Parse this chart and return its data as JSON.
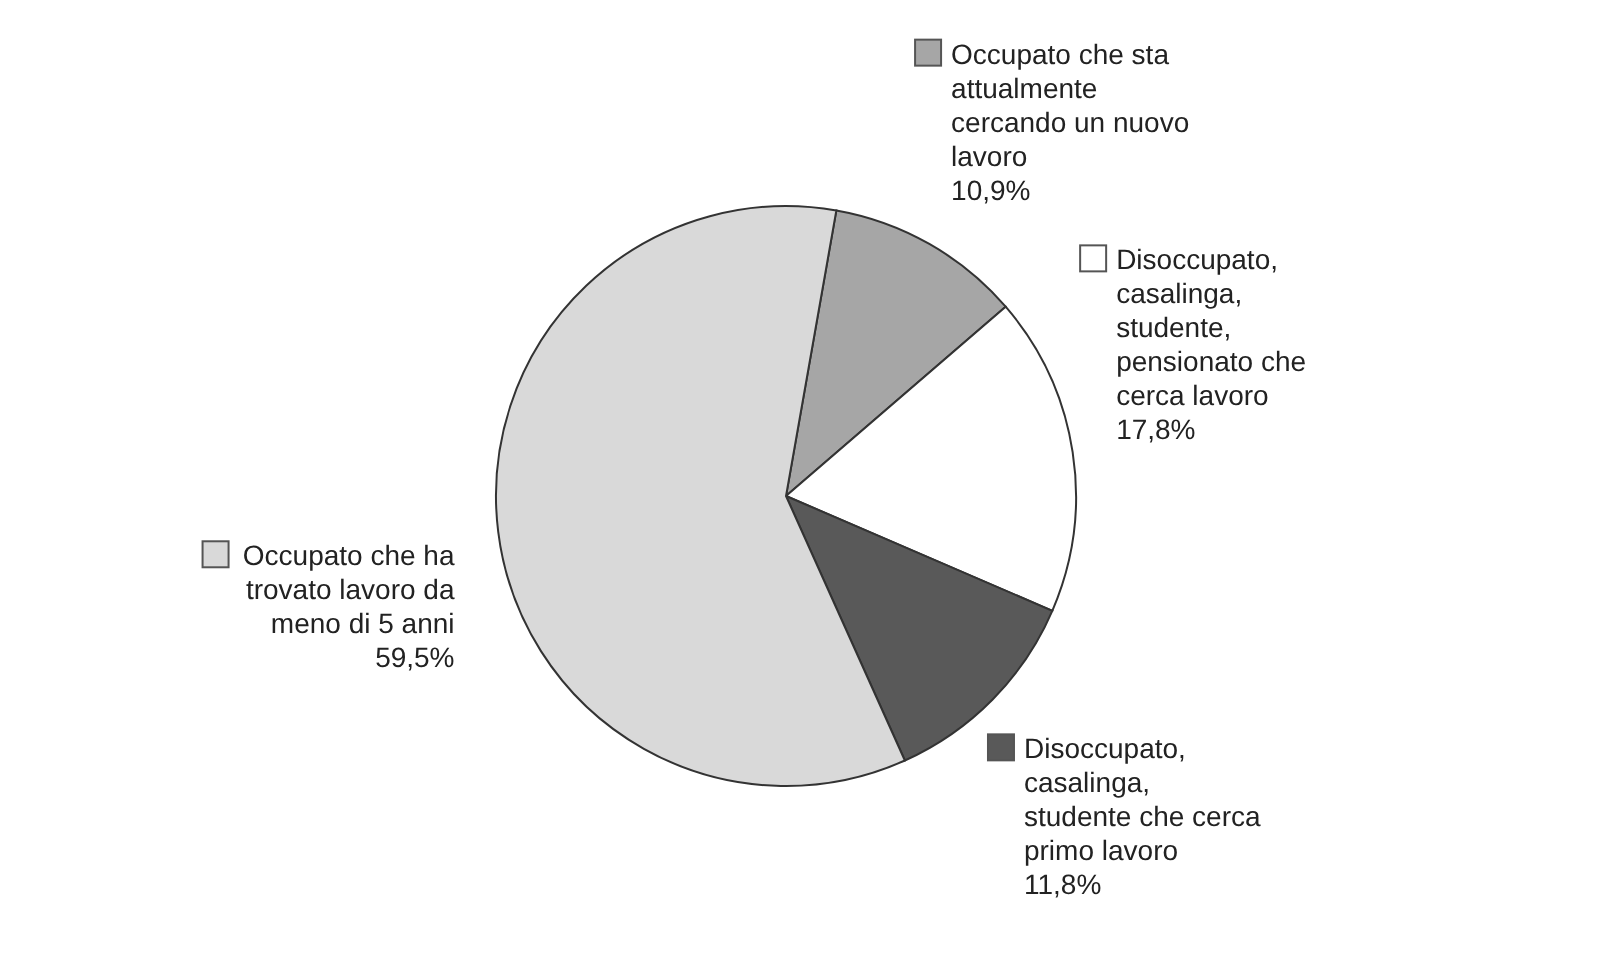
{
  "chart_data": {
    "type": "pie",
    "categories": [
      "Occupato che sta attualmente cercando un nuovo lavoro",
      "Disoccupato, casalinga, studente, pensionato che cerca lavoro",
      "Disoccupato, casalinga, studente che cerca primo lavoro",
      "Occupato che ha trovato lavoro da meno di 5 anni"
    ],
    "values": [
      10.9,
      17.8,
      11.8,
      59.5
    ],
    "colors": [
      "#a6a6a6",
      "#ffffff",
      "#595959",
      "#d9d9d9"
    ],
    "value_labels": [
      "10,9%",
      "17,8%",
      "11,8%",
      "59,5%"
    ],
    "legend": "top left"
  }
}
